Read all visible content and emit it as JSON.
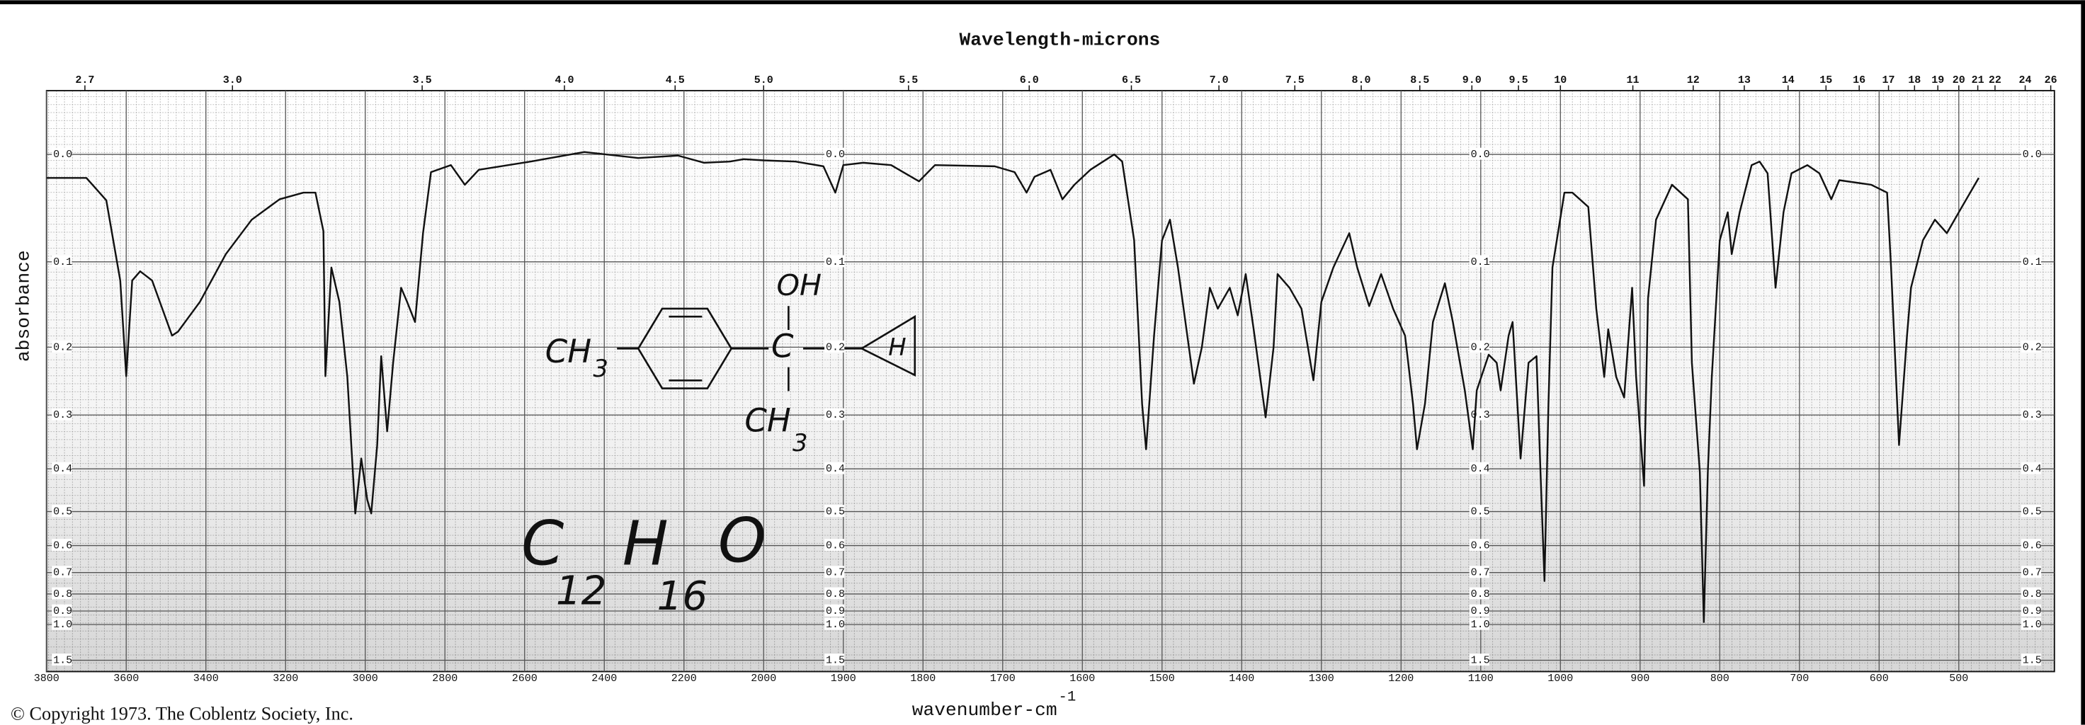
{
  "chart_data": {
    "type": "line",
    "title": "Wavelength-microns",
    "xlabel": "wavenumber-cm",
    "xlabel_superscript": "-1",
    "ylabel": "absorbance",
    "footer": "© Copyright 1973. The Coblentz Society, Inc.",
    "color": "#111111",
    "grid": true,
    "y_scale": "transmittance-linear",
    "x_scale_break": {
      "at": 2000,
      "factor": 2
    },
    "xlim": [
      3800,
      380
    ],
    "ylim": [
      -0.05,
      2
    ],
    "xticks": [
      3800,
      3600,
      3400,
      3200,
      3000,
      2800,
      2600,
      2400,
      2200,
      2000,
      1900,
      1800,
      1700,
      1600,
      1500,
      1400,
      1300,
      1200,
      1100,
      1000,
      900,
      800,
      700,
      600,
      500
    ],
    "yticks": [
      {
        "value": 0,
        "label": "0.0"
      },
      0.1,
      0.2,
      0.3,
      0.4,
      0.5,
      0.6,
      0.7,
      0.8,
      0.9,
      {
        "value": 1,
        "label": "1.0"
      },
      1.5
    ],
    "x2ticks": [
      2.7,
      {
        "value": 3,
        "label": "3.0"
      },
      3.5,
      {
        "value": 4,
        "label": "4.0"
      },
      4.5,
      {
        "value": 5,
        "label": "5.0"
      },
      5.5,
      {
        "value": 6,
        "label": "6.0"
      },
      6.5,
      {
        "value": 7,
        "label": "7.0"
      },
      7.5,
      {
        "value": 8,
        "label": "8.0"
      },
      8.5,
      {
        "value": 9,
        "label": "9.0"
      },
      9.5,
      10,
      11,
      12,
      13,
      14,
      15,
      16,
      17,
      18,
      19,
      20,
      21,
      22,
      24,
      26
    ],
    "x": [
      3800,
      3700,
      3650,
      3615,
      3600,
      3585,
      3565,
      3535,
      3485,
      3470,
      3415,
      3350,
      3285,
      3215,
      3155,
      3125,
      3105,
      3100,
      3085,
      3065,
      3045,
      3025,
      3010,
      2995,
      2985,
      2970,
      2960,
      2945,
      2930,
      2910,
      2895,
      2875,
      2855,
      2835,
      2785,
      2750,
      2715,
      2585,
      2450,
      2315,
      2215,
      2150,
      2085,
      2050,
      2000,
      1960,
      1925,
      1910,
      1900,
      1875,
      1840,
      1805,
      1785,
      1710,
      1685,
      1670,
      1660,
      1640,
      1625,
      1610,
      1590,
      1560,
      1550,
      1535,
      1525,
      1520,
      1510,
      1500,
      1490,
      1480,
      1460,
      1450,
      1440,
      1430,
      1415,
      1405,
      1395,
      1385,
      1370,
      1360,
      1355,
      1340,
      1325,
      1310,
      1300,
      1285,
      1265,
      1255,
      1240,
      1225,
      1210,
      1195,
      1185,
      1180,
      1170,
      1160,
      1145,
      1135,
      1120,
      1110,
      1105,
      1090,
      1080,
      1075,
      1065,
      1060,
      1050,
      1040,
      1030,
      1025,
      1020,
      1015,
      1010,
      995,
      985,
      965,
      955,
      945,
      940,
      930,
      920,
      910,
      905,
      895,
      890,
      880,
      860,
      840,
      835,
      825,
      820,
      815,
      810,
      800,
      790,
      785,
      775,
      760,
      750,
      740,
      730,
      720,
      710,
      690,
      675,
      660,
      650,
      630,
      610,
      590,
      585,
      575,
      565,
      560,
      545,
      530,
      515,
      500,
      475
    ],
    "values": [
      0.02,
      0.02,
      0.04,
      0.12,
      0.24,
      0.12,
      0.11,
      0.12,
      0.185,
      0.18,
      0.144,
      0.092,
      0.058,
      0.039,
      0.033,
      0.033,
      0.069,
      0.24,
      0.106,
      0.144,
      0.241,
      0.505,
      0.379,
      0.47,
      0.505,
      0.353,
      0.212,
      0.328,
      0.221,
      0.128,
      0.144,
      0.168,
      0.071,
      0.015,
      0.009,
      0.026,
      0.013,
      0.006,
      -0.002,
      0.003,
      0.001,
      0.007,
      0.006,
      0.004,
      0.005,
      0.006,
      0.01,
      0.033,
      0.009,
      0.007,
      0.009,
      0.023,
      0.009,
      0.01,
      0.015,
      0.033,
      0.019,
      0.013,
      0.039,
      0.026,
      0.013,
      0,
      0.006,
      0.078,
      0.282,
      0.361,
      0.185,
      0.078,
      0.058,
      0.106,
      0.251,
      0.2,
      0.128,
      0.152,
      0.128,
      0.16,
      0.113,
      0.177,
      0.304,
      0.2,
      0.113,
      0.128,
      0.152,
      0.246,
      0.144,
      0.106,
      0.071,
      0.106,
      0.149,
      0.113,
      0.152,
      0.185,
      0.282,
      0.361,
      0.282,
      0.168,
      0.123,
      0.168,
      0.261,
      0.361,
      0.261,
      0.21,
      0.221,
      0.261,
      0.185,
      0.168,
      0.379,
      0.221,
      0.212,
      0.407,
      0.737,
      0.282,
      0.106,
      0.033,
      0.033,
      0.046,
      0.152,
      0.241,
      0.177,
      0.241,
      0.272,
      0.128,
      0.241,
      0.437,
      0.14,
      0.058,
      0.026,
      0.039,
      0.221,
      0.407,
      0.98,
      0.407,
      0.241,
      0.078,
      0.051,
      0.092,
      0.051,
      0.009,
      0.006,
      0.016,
      0.128,
      0.051,
      0.016,
      0.009,
      0.016,
      0.039,
      0.022,
      0.024,
      0.026,
      0.033,
      0.106,
      0.353,
      0.185,
      0.128,
      0.078,
      0.058,
      0.071,
      0.051,
      0.02
    ],
    "annotations": {
      "formula": [
        "C",
        "12",
        "H",
        "16",
        "O"
      ],
      "structure": [
        "OH",
        "CH",
        "3",
        "C",
        "CH",
        "3",
        "H"
      ]
    }
  }
}
